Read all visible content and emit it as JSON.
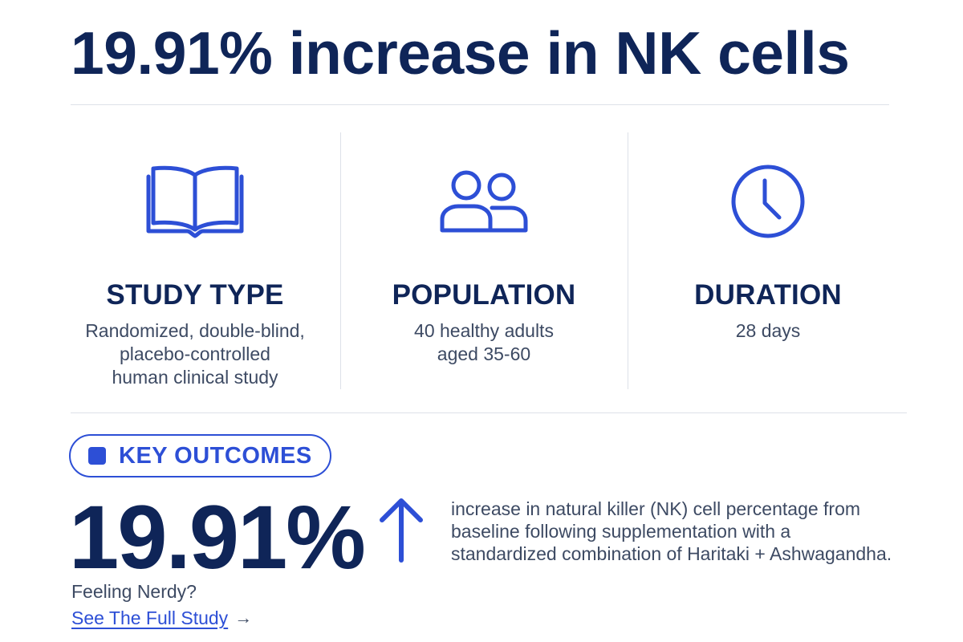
{
  "headline": "19.91% increase in NK cells",
  "study_details": [
    {
      "icon": "open-book-icon",
      "title": "STUDY TYPE",
      "description": "Randomized, double-blind,\nplacebo-controlled\nhuman clinical study"
    },
    {
      "icon": "people-icon",
      "title": "POPULATION",
      "description": "40 healthy adults\naged 35-60"
    },
    {
      "icon": "clock-icon",
      "title": "DURATION",
      "description": "28 days"
    }
  ],
  "key_outcomes": {
    "label": "KEY OUTCOMES",
    "stat": "19.91%",
    "direction_icon": "arrow-up-icon",
    "description": "increase in natural killer (NK) cell percentage from\nbaseline following supplementation with a\nstandardized combination of Haritaki + Ashwagandha."
  },
  "footer": {
    "prompt": "Feeling Nerdy?",
    "link_label": "See The Full Study",
    "link_arrow": "→"
  },
  "colors": {
    "navy": "#0f2558",
    "accent_blue": "#2d4fd6",
    "body_text": "#3d4a63",
    "divider": "#dde1e8"
  }
}
